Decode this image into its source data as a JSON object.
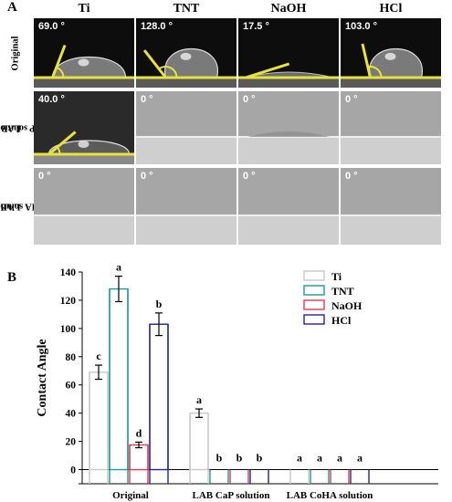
{
  "panel_a": {
    "letter": "A",
    "columns": [
      "Ti",
      "TNT",
      "NaOH",
      "HCl"
    ],
    "rows": [
      {
        "label_lines": [
          "Original"
        ],
        "cells": [
          {
            "angle": "69.0 °",
            "style": "drop-dark",
            "value": 69.0
          },
          {
            "angle": "128.0 °",
            "style": "drop-dark",
            "value": 128.0
          },
          {
            "angle": "17.5 °",
            "style": "flat-dark",
            "value": 17.5
          },
          {
            "angle": "103.0 °",
            "style": "drop-dark",
            "value": 103.0
          }
        ]
      },
      {
        "label_lines": [
          "LAB",
          "CaP solution"
        ],
        "cells": [
          {
            "angle": "40.0 °",
            "style": "drop-mid",
            "value": 40.0
          },
          {
            "angle": "0 °",
            "style": "film",
            "value": 0
          },
          {
            "angle": "0 °",
            "style": "film-rough",
            "value": 0
          },
          {
            "angle": "0 °",
            "style": "film",
            "value": 0
          }
        ]
      },
      {
        "label_lines": [
          "LAB",
          "CoHA solution"
        ],
        "cells": [
          {
            "angle": "0 °",
            "style": "film-light",
            "value": 0
          },
          {
            "angle": "0 °",
            "style": "film-light",
            "value": 0
          },
          {
            "angle": "0 °",
            "style": "film-light",
            "value": 0
          },
          {
            "angle": "0 °",
            "style": "film-light",
            "value": 0
          }
        ]
      }
    ]
  },
  "panel_b": {
    "letter": "B"
  },
  "colors": {
    "Ti": "#c8c8c8",
    "TNT": "#1a9b95",
    "NaOH": "#e8384a",
    "HCl": "#25239a",
    "fit_line": "#e8e23a"
  },
  "chart_data": {
    "type": "bar",
    "categories": [
      "Original",
      "LAB CaP solution",
      "LAB CoHA solution"
    ],
    "series": [
      {
        "name": "Ti",
        "values": [
          69.0,
          40.0,
          0
        ],
        "errors": [
          5,
          3,
          0
        ],
        "letters": [
          "c",
          "a",
          "a"
        ]
      },
      {
        "name": "TNT",
        "values": [
          128.0,
          0,
          0
        ],
        "errors": [
          9,
          0,
          0
        ],
        "letters": [
          "a",
          "b",
          "a"
        ]
      },
      {
        "name": "NaOH",
        "values": [
          17.5,
          0,
          0
        ],
        "errors": [
          2,
          0,
          0
        ],
        "letters": [
          "d",
          "b",
          "a"
        ]
      },
      {
        "name": "HCl",
        "values": [
          103.0,
          0,
          0
        ],
        "errors": [
          8,
          0,
          0
        ],
        "letters": [
          "b",
          "b",
          "a"
        ]
      }
    ],
    "ylabel": "Contact Angle",
    "ylim": [
      -10,
      140
    ],
    "yticks": [
      0,
      20,
      40,
      60,
      80,
      100,
      120,
      140
    ],
    "legend_position": "top-right",
    "grid": false
  }
}
